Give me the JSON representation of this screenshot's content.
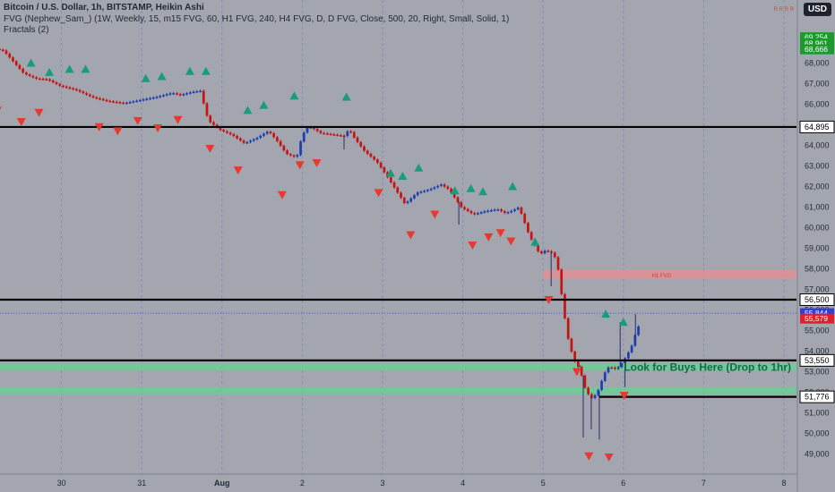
{
  "header": {
    "symbol_line": "Bitcoin / U.S. Dollar, 1h, BITSTAMP, Heikin Ashi",
    "indicator_line": "FVG (Nephew_Sam_) (1W, Weekly, 15, m15 FVG, 60, H1 FVG, 240, H4 FVG, D, D FVG, Close, 500, 20, Right, Small, Solid, 1)",
    "fractals_line": "Fractals (2)",
    "currency_badge": "USD",
    "top_note": "R R R R"
  },
  "colors": {
    "background": "#a3a6af",
    "grid": "#7a88b8",
    "bull": "#1f3fb0",
    "bear": "#c41414",
    "fractal_up": "#1a9b7c",
    "fractal_down": "#e8392f",
    "level_line": "#000000",
    "buy_zone": "#6ccc94",
    "fvg_zone": "#e58f94"
  },
  "chart_data": {
    "type": "candlestick",
    "style": "Heikin Ashi",
    "timeframe": "1h",
    "price_axis": {
      "min": 48500,
      "max": 69600,
      "ticks": [
        49000,
        50000,
        51000,
        52000,
        53000,
        54000,
        55000,
        56000,
        57000,
        58000,
        59000,
        60000,
        61000,
        62000,
        63000,
        64000,
        65000,
        66000,
        67000,
        68000
      ],
      "tick_labels": [
        "49,000",
        "50,000",
        "51,000",
        "52,000",
        "53,000",
        "54,000",
        "55,000",
        "56,000",
        "57,000",
        "58,000",
        "59,000",
        "60,000",
        "61,000",
        "62,000",
        "63,000",
        "64,000",
        "65,000",
        "66,000",
        "67,000",
        "68,000"
      ]
    },
    "time_axis": {
      "day_ticks": [
        {
          "day": 1,
          "label": "30"
        },
        {
          "day": 2,
          "label": "31"
        },
        {
          "day": 3,
          "label": "Aug"
        },
        {
          "day": 4,
          "label": "2"
        },
        {
          "day": 5,
          "label": "3"
        },
        {
          "day": 6,
          "label": "4"
        },
        {
          "day": 7,
          "label": "5"
        },
        {
          "day": 8,
          "label": "6"
        },
        {
          "day": 9,
          "label": "7"
        },
        {
          "day": 10,
          "label": "8"
        }
      ]
    },
    "grid": true,
    "price_path": [
      [
        0.0,
        68900
      ],
      [
        0.3,
        68600
      ],
      [
        0.55,
        67500
      ],
      [
        0.7,
        67250
      ],
      [
        0.85,
        67200
      ],
      [
        1.0,
        66900
      ],
      [
        1.2,
        66700
      ],
      [
        1.4,
        66350
      ],
      [
        1.6,
        66150
      ],
      [
        1.8,
        66050
      ],
      [
        2.0,
        66200
      ],
      [
        2.2,
        66350
      ],
      [
        2.4,
        66550
      ],
      [
        2.5,
        66450
      ],
      [
        2.65,
        66600
      ],
      [
        2.75,
        66650
      ],
      [
        2.85,
        65200
      ],
      [
        3.0,
        64750
      ],
      [
        3.15,
        64500
      ],
      [
        3.3,
        64100
      ],
      [
        3.45,
        64350
      ],
      [
        3.6,
        64700
      ],
      [
        3.7,
        64250
      ],
      [
        3.82,
        63600
      ],
      [
        3.95,
        63400
      ],
      [
        4.02,
        64500
      ],
      [
        4.1,
        64950
      ],
      [
        4.25,
        64600
      ],
      [
        4.45,
        64500
      ],
      [
        4.55,
        64450
      ],
      [
        4.6,
        64800
      ],
      [
        4.68,
        64300
      ],
      [
        4.8,
        63700
      ],
      [
        4.95,
        63200
      ],
      [
        5.05,
        62650
      ],
      [
        5.2,
        61750
      ],
      [
        5.3,
        61150
      ],
      [
        5.45,
        61700
      ],
      [
        5.6,
        61850
      ],
      [
        5.75,
        62100
      ],
      [
        5.85,
        61850
      ],
      [
        6.0,
        61000
      ],
      [
        6.15,
        60650
      ],
      [
        6.3,
        60800
      ],
      [
        6.45,
        60900
      ],
      [
        6.55,
        60700
      ],
      [
        6.65,
        60850
      ],
      [
        6.72,
        61000
      ],
      [
        6.85,
        59600
      ],
      [
        6.98,
        58700
      ],
      [
        7.05,
        58900
      ],
      [
        7.15,
        58750
      ],
      [
        7.2,
        58200
      ],
      [
        7.27,
        56200
      ],
      [
        7.32,
        54800
      ],
      [
        7.4,
        53600
      ],
      [
        7.48,
        53100
      ],
      [
        7.55,
        52100
      ],
      [
        7.62,
        51700
      ],
      [
        7.68,
        51900
      ],
      [
        7.72,
        52200
      ],
      [
        7.78,
        52900
      ],
      [
        7.85,
        53300
      ],
      [
        7.9,
        53100
      ],
      [
        7.97,
        53250
      ],
      [
        8.05,
        53700
      ],
      [
        8.12,
        54200
      ],
      [
        8.2,
        55200
      ]
    ],
    "wicks": [
      {
        "day": 4.52,
        "low": 63800
      },
      {
        "day": 5.95,
        "low": 60150
      },
      {
        "day": 7.1,
        "low": 57150
      },
      {
        "day": 7.46,
        "low": 53300
      },
      {
        "day": 7.5,
        "low": 49800
      },
      {
        "day": 7.6,
        "low": 50200
      },
      {
        "day": 7.7,
        "low": 49700
      },
      {
        "day": 7.96,
        "high": 55400
      },
      {
        "day": 8.02,
        "low": 52250
      },
      {
        "day": 8.15,
        "high": 55800
      }
    ],
    "fractals_up": [
      {
        "day": 0.07,
        "price": 69500
      },
      {
        "day": 0.62,
        "price": 68000
      },
      {
        "day": 0.85,
        "price": 67550
      },
      {
        "day": 1.1,
        "price": 67700
      },
      {
        "day": 1.3,
        "price": 67700
      },
      {
        "day": 2.05,
        "price": 67250
      },
      {
        "day": 2.25,
        "price": 67350
      },
      {
        "day": 2.6,
        "price": 67600
      },
      {
        "day": 2.8,
        "price": 67600
      },
      {
        "day": 3.32,
        "price": 65700
      },
      {
        "day": 3.52,
        "price": 65950
      },
      {
        "day": 3.9,
        "price": 66400
      },
      {
        "day": 4.55,
        "price": 66350
      },
      {
        "day": 5.1,
        "price": 62650
      },
      {
        "day": 5.25,
        "price": 62500
      },
      {
        "day": 5.45,
        "price": 62900
      },
      {
        "day": 5.9,
        "price": 61800
      },
      {
        "day": 6.1,
        "price": 61900
      },
      {
        "day": 6.25,
        "price": 61750
      },
      {
        "day": 6.62,
        "price": 62000
      },
      {
        "day": 6.9,
        "price": 59300
      },
      {
        "day": 7.78,
        "price": 55800
      },
      {
        "day": 8.0,
        "price": 55400
      }
    ],
    "fractals_down": [
      {
        "day": 0.2,
        "price": 65700
      },
      {
        "day": 0.5,
        "price": 65150
      },
      {
        "day": 0.72,
        "price": 65600
      },
      {
        "day": 1.47,
        "price": 64900
      },
      {
        "day": 1.7,
        "price": 64700
      },
      {
        "day": 1.95,
        "price": 65200
      },
      {
        "day": 2.2,
        "price": 64850
      },
      {
        "day": 2.45,
        "price": 65250
      },
      {
        "day": 2.85,
        "price": 63850
      },
      {
        "day": 3.2,
        "price": 62800
      },
      {
        "day": 3.75,
        "price": 61600
      },
      {
        "day": 3.97,
        "price": 63050
      },
      {
        "day": 4.18,
        "price": 63150
      },
      {
        "day": 4.95,
        "price": 61700
      },
      {
        "day": 5.35,
        "price": 59650
      },
      {
        "day": 5.65,
        "price": 60650
      },
      {
        "day": 6.12,
        "price": 59150
      },
      {
        "day": 6.32,
        "price": 59550
      },
      {
        "day": 6.47,
        "price": 59750
      },
      {
        "day": 6.6,
        "price": 59350
      },
      {
        "day": 7.07,
        "price": 56500
      },
      {
        "day": 7.42,
        "price": 53000
      },
      {
        "day": 7.57,
        "price": 48900
      },
      {
        "day": 7.82,
        "price": 48850
      },
      {
        "day": 8.01,
        "price": 51850
      }
    ],
    "levels": [
      {
        "price": 64895,
        "label": "64,895"
      },
      {
        "price": 56500,
        "label": "56,500"
      },
      {
        "price": 53550,
        "label": "53,550"
      },
      {
        "price": 51776,
        "label": "51,776",
        "start_day": 7.7
      }
    ],
    "zones": [
      {
        "kind": "buy",
        "low": 53050,
        "high": 53400,
        "start_day": 0
      },
      {
        "kind": "buy",
        "low": 51900,
        "high": 52250,
        "start_day": 0
      },
      {
        "kind": "fvg",
        "low": 57500,
        "high": 57950,
        "start_day": 7.0,
        "label": "H1 FVG"
      }
    ],
    "annotation": "Look for Buys Here (Drop to 1hr)",
    "price_labels": [
      {
        "price": 69254,
        "label": "69,254",
        "color": "#1a9b2c"
      },
      {
        "price": 68961,
        "label": "68,961",
        "color": "#1a9b2c"
      },
      {
        "price": 68666,
        "label": "68,666",
        "color": "#1a9b2c"
      },
      {
        "price": 55844,
        "label": "55,844",
        "color": "#2f3fd6"
      },
      {
        "price": 55579,
        "label": "55,579",
        "color": "#e0202a"
      }
    ],
    "last_price": 55844
  }
}
